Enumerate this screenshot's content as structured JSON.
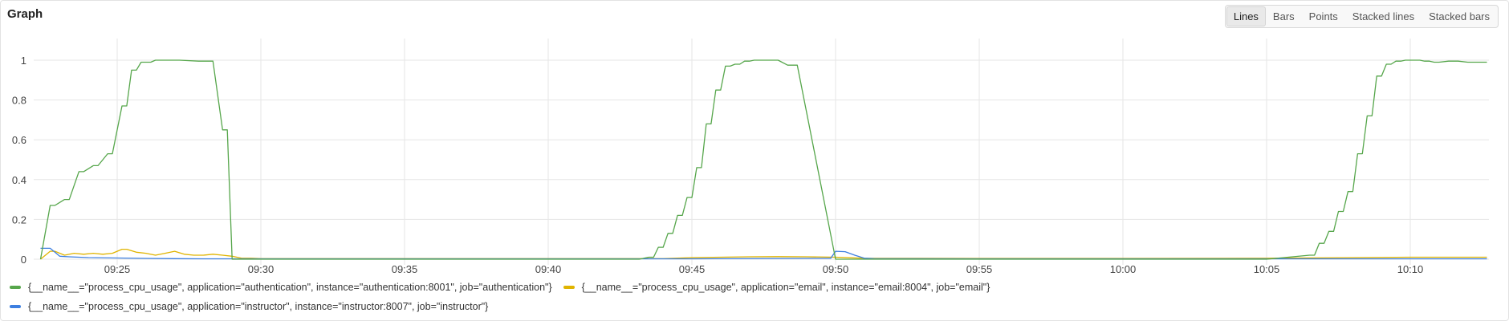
{
  "panel": {
    "title": "Graph"
  },
  "view_modes": {
    "selected": "Lines",
    "options": [
      "Lines",
      "Bars",
      "Points",
      "Stacked lines",
      "Stacked bars"
    ]
  },
  "chart_data": {
    "type": "line",
    "grid": true,
    "legend_placement": "bottom-left",
    "ylim": [
      0,
      1
    ],
    "y_ticks": [
      "0",
      "0.2",
      "0.4",
      "0.6",
      "0.8",
      "1"
    ],
    "x_range": [
      "09:22:20",
      "10:12:40"
    ],
    "x_ticks": [
      "09:25",
      "09:30",
      "09:35",
      "09:40",
      "09:45",
      "09:50",
      "09:55",
      "10:00",
      "10:05",
      "10:10"
    ],
    "series": [
      {
        "name": "{__name__=\"process_cpu_usage\", application=\"authentication\", instance=\"authentication:8001\", job=\"authentication\"}",
        "color": "#56a64b",
        "x": [
          "09:22:20",
          "09:22:40",
          "09:22:50",
          "09:23:10",
          "09:23:20",
          "09:23:40",
          "09:23:50",
          "09:24:10",
          "09:24:20",
          "09:24:40",
          "09:24:50",
          "09:25:10",
          "09:25:20",
          "09:25:30",
          "09:25:40",
          "09:25:50",
          "09:26:10",
          "09:26:20",
          "09:27:10",
          "09:27:50",
          "09:28:20",
          "09:28:40",
          "09:28:50",
          "09:29:00",
          "09:29:50",
          "09:30:00",
          "09:35:00",
          "09:40:00",
          "09:43:10",
          "09:43:30",
          "09:43:40",
          "09:43:50",
          "09:44:00",
          "09:44:10",
          "09:44:20",
          "09:44:30",
          "09:44:40",
          "09:44:50",
          "09:45:00",
          "09:45:10",
          "09:45:20",
          "09:45:30",
          "09:45:40",
          "09:45:50",
          "09:46:00",
          "09:46:10",
          "09:46:20",
          "09:46:30",
          "09:46:40",
          "09:46:50",
          "09:47:00",
          "09:47:10",
          "09:47:20",
          "09:47:30",
          "09:47:40",
          "09:47:50",
          "09:48:00",
          "09:48:20",
          "09:48:40",
          "09:50:00",
          "09:50:10",
          "09:50:20",
          "09:50:30",
          "09:50:40",
          "09:51:00",
          "09:55:00",
          "10:00:00",
          "10:05:00",
          "10:06:30",
          "10:06:40",
          "10:06:50",
          "10:07:00",
          "10:07:10",
          "10:07:20",
          "10:07:30",
          "10:07:40",
          "10:07:50",
          "10:08:00",
          "10:08:10",
          "10:08:20",
          "10:08:30",
          "10:08:40",
          "10:08:50",
          "10:09:00",
          "10:09:10",
          "10:09:20",
          "10:09:30",
          "10:09:40",
          "10:09:50",
          "10:10:00",
          "10:10:10",
          "10:10:20",
          "10:10:30",
          "10:10:40",
          "10:10:50",
          "10:11:00",
          "10:11:20",
          "10:11:40",
          "10:12:00",
          "10:12:40"
        ],
        "values": [
          0.0,
          0.27,
          0.27,
          0.3,
          0.3,
          0.44,
          0.44,
          0.47,
          0.47,
          0.53,
          0.53,
          0.77,
          0.77,
          0.95,
          0.95,
          0.99,
          0.99,
          1.0,
          1.0,
          0.995,
          0.995,
          0.65,
          0.65,
          0.0,
          0.0,
          0.0,
          0.0,
          0.0,
          0.0,
          0.01,
          0.01,
          0.06,
          0.06,
          0.13,
          0.13,
          0.22,
          0.22,
          0.31,
          0.31,
          0.46,
          0.46,
          0.68,
          0.68,
          0.85,
          0.85,
          0.97,
          0.97,
          0.98,
          0.98,
          0.995,
          0.995,
          1.0,
          1.0,
          1.0,
          1.0,
          1.0,
          1.0,
          0.975,
          0.975,
          0.0,
          0.0,
          0.0,
          0.0,
          0.0,
          0.0,
          0.0,
          0.0,
          0.0,
          0.02,
          0.02,
          0.08,
          0.08,
          0.14,
          0.14,
          0.24,
          0.24,
          0.34,
          0.34,
          0.53,
          0.53,
          0.72,
          0.72,
          0.92,
          0.92,
          0.98,
          0.98,
          0.995,
          0.995,
          1.0,
          1.0,
          1.0,
          1.0,
          0.995,
          0.995,
          0.99,
          0.99,
          0.995,
          0.995,
          0.99,
          0.99
        ]
      },
      {
        "name": "{__name__=\"process_cpu_usage\", application=\"email\", instance=\"email:8004\", job=\"email\"}",
        "color": "#e0b400",
        "x": [
          "09:22:20",
          "09:22:40",
          "09:22:50",
          "09:23:10",
          "09:23:30",
          "09:23:50",
          "09:24:10",
          "09:24:30",
          "09:24:50",
          "09:25:10",
          "09:25:20",
          "09:25:40",
          "09:26:00",
          "09:26:20",
          "09:26:40",
          "09:27:00",
          "09:27:20",
          "09:27:40",
          "09:28:00",
          "09:28:20",
          "09:28:40",
          "09:29:00",
          "09:29:20",
          "09:29:40",
          "09:30:00",
          "09:35:00",
          "09:40:00",
          "09:44:00",
          "09:45:00",
          "09:46:00",
          "09:47:00",
          "09:48:00",
          "09:49:00",
          "09:50:00",
          "09:51:00",
          "09:55:00",
          "10:00:00",
          "10:05:00",
          "10:06:00",
          "10:08:00",
          "10:10:00",
          "10:12:40"
        ],
        "values": [
          0.0,
          0.04,
          0.04,
          0.02,
          0.03,
          0.025,
          0.03,
          0.025,
          0.03,
          0.05,
          0.05,
          0.035,
          0.03,
          0.02,
          0.03,
          0.04,
          0.025,
          0.02,
          0.02,
          0.025,
          0.02,
          0.015,
          0.005,
          0.005,
          0.003,
          0.003,
          0.003,
          0.003,
          0.008,
          0.01,
          0.012,
          0.013,
          0.012,
          0.01,
          0.005,
          0.004,
          0.004,
          0.005,
          0.006,
          0.008,
          0.01,
          0.01
        ]
      },
      {
        "name": "{__name__=\"process_cpu_usage\", application=\"instructor\", instance=\"instructor:8007\", job=\"instructor\"}",
        "color": "#3d7fe0",
        "x": [
          "09:22:20",
          "09:22:40",
          "09:23:00",
          "09:23:20",
          "09:24:00",
          "09:25:00",
          "09:26:00",
          "09:27:00",
          "09:28:00",
          "09:29:00",
          "09:30:00",
          "09:35:00",
          "09:40:00",
          "09:45:00",
          "09:49:50",
          "09:50:00",
          "09:50:20",
          "09:50:40",
          "09:51:00",
          "09:51:20",
          "09:55:00",
          "10:00:00",
          "10:05:00",
          "10:10:00",
          "10:12:40"
        ],
        "values": [
          0.055,
          0.055,
          0.015,
          0.012,
          0.008,
          0.006,
          0.004,
          0.003,
          0.002,
          0.002,
          0.002,
          0.002,
          0.002,
          0.002,
          0.005,
          0.04,
          0.038,
          0.02,
          0.005,
          0.003,
          0.002,
          0.002,
          0.002,
          0.002,
          0.002
        ]
      }
    ]
  }
}
